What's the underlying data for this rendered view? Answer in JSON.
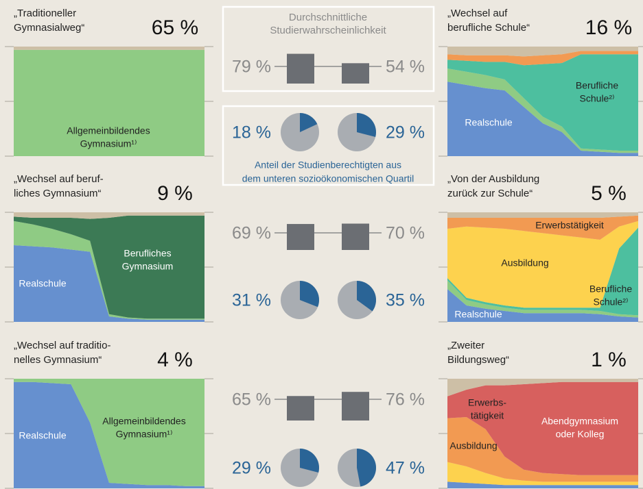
{
  "chart_data": [
    {
      "type": "area",
      "title": [
        "„Traditioneller",
        "Gymnasialweg“"
      ],
      "share": 65,
      "share_label": "65 %",
      "series": [
        {
          "name": [
            "Allgemeinbildendes",
            "Gymnasium¹⁾"
          ],
          "color": "#8fcb84",
          "values": [
            97,
            97,
            97,
            97,
            97,
            97,
            97,
            97,
            97,
            97,
            97
          ]
        },
        {
          "color": "#cdbfa6",
          "values": [
            3,
            3,
            3,
            3,
            3,
            3,
            3,
            3,
            3,
            3,
            3
          ]
        }
      ]
    },
    {
      "type": "area",
      "title": [
        "„Wechsel auf",
        " berufliche Schule“"
      ],
      "share": 16,
      "share_label": "16 %",
      "series": [
        {
          "name": [
            "Realschule"
          ],
          "color": "#6690cf",
          "values": [
            68,
            65,
            62,
            60,
            45,
            30,
            22,
            5,
            4,
            3,
            3
          ]
        },
        {
          "color": "#8fcb84",
          "values": [
            12,
            12,
            12,
            10,
            8,
            6,
            5,
            2,
            2,
            2,
            2
          ]
        },
        {
          "name": [
            "Berufliche",
            "Schule²⁾"
          ],
          "color": "#4dbf9f",
          "values": [
            8,
            10,
            12,
            16,
            30,
            48,
            58,
            86,
            87,
            88,
            88
          ]
        },
        {
          "color": "#f29a52",
          "values": [
            5,
            5,
            6,
            6,
            8,
            8,
            8,
            3,
            3,
            3,
            3
          ]
        },
        {
          "color": "#cdbfa6",
          "values": [
            7,
            8,
            8,
            8,
            9,
            8,
            7,
            4,
            4,
            4,
            4
          ]
        }
      ]
    },
    {
      "type": "area",
      "title": [
        "„Wechsel auf beruf-",
        "liches Gymnasium“"
      ],
      "share": 9,
      "share_label": "9 %",
      "series": [
        {
          "name": [
            "Realschule"
          ],
          "color": "#6690cf",
          "values": [
            70,
            69,
            68,
            66,
            64,
            5,
            3,
            2,
            2,
            2,
            2
          ]
        },
        {
          "color": "#8fcb84",
          "values": [
            22,
            20,
            17,
            14,
            10,
            2,
            1,
            1,
            1,
            1,
            1
          ]
        },
        {
          "name": [
            "Berufliches",
            "Gymnasium"
          ],
          "color": "#3c7a55",
          "values": [
            4,
            6,
            10,
            15,
            20,
            88,
            93,
            94,
            94,
            94,
            94
          ]
        },
        {
          "color": "#cdbfa6",
          "values": [
            4,
            5,
            5,
            5,
            6,
            5,
            3,
            3,
            3,
            3,
            3
          ]
        }
      ]
    },
    {
      "type": "area",
      "title": [
        "„Von der Ausbildung",
        "zurück zur Schule“"
      ],
      "share": 5,
      "share_label": "5 %",
      "series": [
        {
          "name": [
            "Realschule"
          ],
          "color": "#6690cf",
          "values": [
            30,
            15,
            12,
            10,
            8,
            8,
            8,
            8,
            7,
            5,
            4
          ]
        },
        {
          "color": "#8fcb84",
          "values": [
            8,
            5,
            4,
            3,
            3,
            3,
            3,
            3,
            3,
            2,
            2
          ]
        },
        {
          "name": [
            "Berufliche",
            "Schule²⁾"
          ],
          "color": "#4dbf9f",
          "values": [
            2,
            2,
            2,
            2,
            2,
            2,
            2,
            2,
            3,
            60,
            80
          ]
        },
        {
          "name": [
            "Ausbildung"
          ],
          "color": "#fdd24e",
          "values": [
            45,
            65,
            68,
            70,
            70,
            68,
            66,
            64,
            62,
            20,
            6
          ]
        },
        {
          "name": [
            "Erwerbstätigkeit"
          ],
          "color": "#f29a52",
          "values": [
            10,
            8,
            9,
            10,
            12,
            14,
            16,
            18,
            20,
            9,
            5
          ]
        },
        {
          "color": "#cdbfa6",
          "values": [
            5,
            5,
            5,
            5,
            5,
            5,
            5,
            5,
            5,
            4,
            3
          ]
        }
      ]
    },
    {
      "type": "area",
      "title": [
        "„Wechsel auf traditio-",
        "nelles Gymnasium“"
      ],
      "share": 4,
      "share_label": "4 %",
      "series": [
        {
          "name": [
            "Realschule"
          ],
          "color": "#6690cf",
          "values": [
            97,
            97,
            96,
            95,
            60,
            5,
            4,
            3,
            3,
            2,
            2
          ]
        },
        {
          "name": [
            "Allgemeinbildendes",
            "Gymnasium¹⁾"
          ],
          "color": "#8fcb84",
          "values": [
            3,
            3,
            4,
            5,
            40,
            95,
            96,
            97,
            97,
            98,
            98
          ]
        }
      ]
    },
    {
      "type": "area",
      "title": [
        "„Zweiter",
        "Bildungsweg“"
      ],
      "share": 1,
      "share_label": "1 %",
      "series": [
        {
          "color": "#6690cf",
          "values": [
            6,
            5,
            4,
            3,
            3,
            3,
            3,
            3,
            3,
            3,
            3
          ]
        },
        {
          "name": [
            "Ausbildung"
          ],
          "color": "#fdd24e",
          "values": [
            18,
            15,
            10,
            6,
            4,
            3,
            3,
            3,
            3,
            3,
            3
          ]
        },
        {
          "name": [
            "Erwerbs-",
            "tätigkeit"
          ],
          "color": "#f29a52",
          "values": [
            40,
            45,
            40,
            20,
            10,
            8,
            7,
            6,
            6,
            6,
            6
          ]
        },
        {
          "name": [
            "Abendgymnasium",
            "oder Kolleg"
          ],
          "color": "#d7605e",
          "values": [
            20,
            25,
            40,
            65,
            78,
            82,
            84,
            85,
            85,
            85,
            85
          ]
        },
        {
          "color": "#cdbfa6",
          "values": [
            16,
            10,
            6,
            6,
            5,
            4,
            3,
            3,
            3,
            3,
            3
          ]
        }
      ]
    },
    {
      "type": "bar",
      "title": [
        "Durchschnittliche",
        "Studierwahrscheinlichkeit"
      ],
      "values": [
        79,
        54
      ],
      "value_labels": [
        "79 %",
        "54 %"
      ],
      "color": "#6b6e73"
    },
    {
      "type": "pie",
      "values": [
        18,
        29
      ],
      "value_labels": [
        "18 %",
        "29 %"
      ],
      "color": "#2a6496",
      "caption": [
        "Anteil der Studienberechtigten aus",
        "dem unteren sozioökonomischen Quartil"
      ]
    },
    {
      "type": "bar",
      "values": [
        69,
        70
      ],
      "value_labels": [
        "69 %",
        "70 %"
      ],
      "color": "#6b6e73"
    },
    {
      "type": "pie",
      "values": [
        31,
        35
      ],
      "value_labels": [
        "31 %",
        "35 %"
      ],
      "color": "#2a6496"
    },
    {
      "type": "bar",
      "values": [
        65,
        76
      ],
      "value_labels": [
        "65 %",
        "76 %"
      ],
      "color": "#6b6e73"
    },
    {
      "type": "pie",
      "values": [
        29,
        47
      ],
      "value_labels": [
        "29 %",
        "47 %"
      ],
      "color": "#2a6496"
    }
  ]
}
